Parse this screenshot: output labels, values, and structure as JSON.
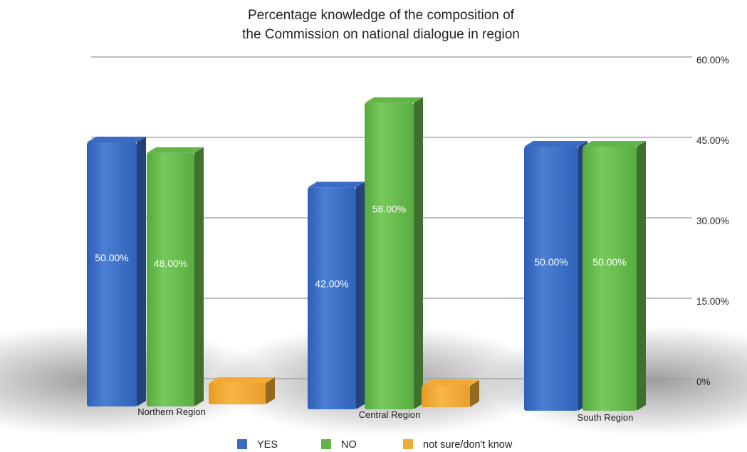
{
  "chart_data": {
    "type": "bar",
    "title_lines": [
      "Percentage knowledge of the composition of",
      "the Commission on national dialogue in region"
    ],
    "categories": [
      "Northern Region",
      "Central Region",
      "South Region"
    ],
    "series": [
      {
        "name": "YES",
        "color": "#3a6cc4",
        "values": [
          50,
          42,
          50
        ],
        "labels": [
          "50.00%",
          "42.00%",
          "50.00%"
        ]
      },
      {
        "name": "NO",
        "color": "#62b649",
        "values": [
          48,
          58,
          50
        ],
        "labels": [
          "48.00%",
          "58.00%",
          "50.00%"
        ]
      },
      {
        "name": "not sure/don't know",
        "color": "#f2a935",
        "values": [
          2,
          2,
          0
        ],
        "labels": [
          "",
          "",
          ""
        ]
      }
    ],
    "y_axis": {
      "ylim": [
        0,
        60
      ],
      "ticks": [
        0,
        15,
        30,
        45,
        60
      ],
      "tick_labels": [
        "0%",
        "15.00%",
        "30.00%",
        "45.00%",
        "60.00%"
      ],
      "position": "right"
    },
    "grid": true,
    "legend_position": "bottom"
  }
}
